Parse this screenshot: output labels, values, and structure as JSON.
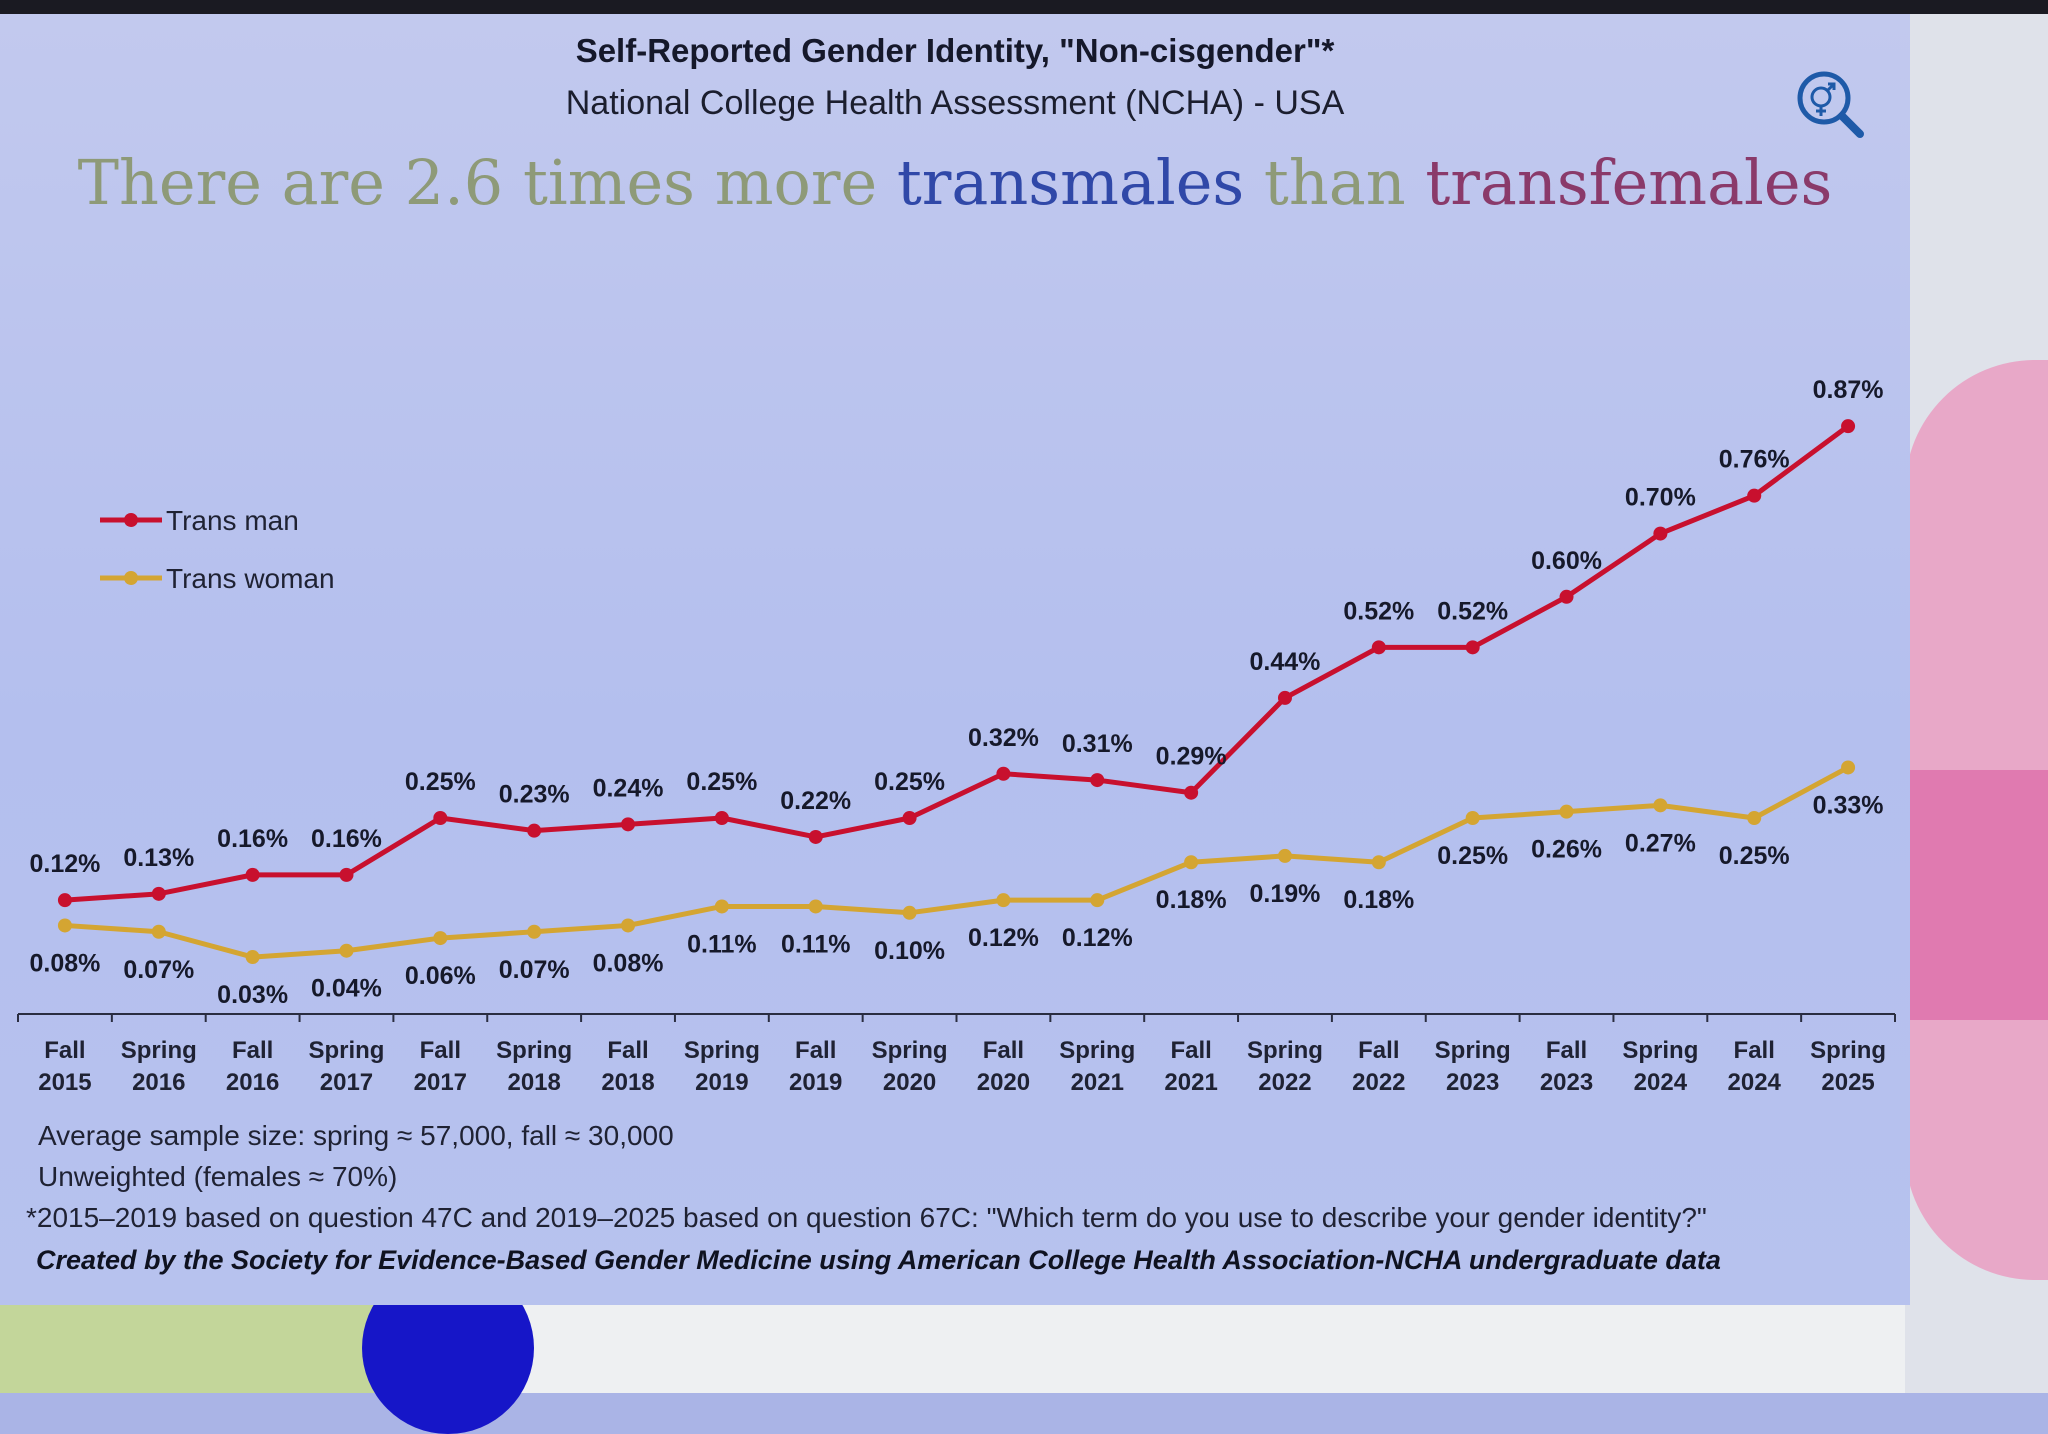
{
  "title": "Self-Reported Gender Identity, \"Non-cisgender\"*",
  "subtitle": "National College Health Assessment (NCHA) - USA",
  "headline": {
    "part1": "There are 2.6 times more ",
    "part2": "transmales",
    "part3": " than ",
    "part4": "transfemales"
  },
  "logo_icon": "gender-search-icon",
  "notes": {
    "sample_size": "Average sample size: spring ≈ 57,000, fall ≈ 30,000",
    "weighting": "Unweighted (females ≈ 70%)",
    "questions": "*2015–2019 based on question 47C and 2019–2025 based on question 67C: \"Which term do you use to describe your gender identity?\"",
    "credit": "Created by the Society for Evidence-Based Gender Medicine using American College Health Association-NCHA undergraduate data"
  },
  "chart_data": {
    "type": "line",
    "title": "Self-Reported Gender Identity, \"Non-cisgender\"*",
    "xlabel": "",
    "ylabel": "",
    "ylim": [
      0,
      1.0
    ],
    "grid": false,
    "legend_position": "left",
    "categories": [
      [
        "Fall",
        "2015"
      ],
      [
        "Spring",
        "2016"
      ],
      [
        "Fall",
        "2016"
      ],
      [
        "Spring",
        "2017"
      ],
      [
        "Fall",
        "2017"
      ],
      [
        "Spring",
        "2018"
      ],
      [
        "Fall",
        "2018"
      ],
      [
        "Spring",
        "2019"
      ],
      [
        "Fall",
        "2019"
      ],
      [
        "Spring",
        "2020"
      ],
      [
        "Fall",
        "2020"
      ],
      [
        "Spring",
        "2021"
      ],
      [
        "Fall",
        "2021"
      ],
      [
        "Spring",
        "2022"
      ],
      [
        "Fall",
        "2022"
      ],
      [
        "Spring",
        "2023"
      ],
      [
        "Fall",
        "2023"
      ],
      [
        "Spring",
        "2024"
      ],
      [
        "Fall",
        "2024"
      ],
      [
        "Spring",
        "2025"
      ]
    ],
    "series": [
      {
        "name": "Trans man",
        "color": "#c8102e",
        "values": [
          0.12,
          0.13,
          0.16,
          0.16,
          0.25,
          0.23,
          0.24,
          0.25,
          0.22,
          0.25,
          0.32,
          0.31,
          0.29,
          0.44,
          0.52,
          0.52,
          0.6,
          0.7,
          0.76,
          0.87
        ],
        "labels": [
          "0.12%",
          "0.13%",
          "0.16%",
          "0.16%",
          "0.25%",
          "0.23%",
          "0.24%",
          "0.25%",
          "0.22%",
          "0.25%",
          "0.32%",
          "0.31%",
          "0.29%",
          "0.44%",
          "0.52%",
          "0.52%",
          "0.60%",
          "0.70%",
          "0.76%",
          "0.87%"
        ]
      },
      {
        "name": "Trans woman",
        "color": "#d4a532",
        "values": [
          0.08,
          0.07,
          0.03,
          0.04,
          0.06,
          0.07,
          0.08,
          0.11,
          0.11,
          0.1,
          0.12,
          0.12,
          0.18,
          0.19,
          0.18,
          0.25,
          0.26,
          0.27,
          0.25,
          0.33
        ],
        "labels": [
          "0.08%",
          "0.07%",
          "0.03%",
          "0.04%",
          "0.06%",
          "0.07%",
          "0.08%",
          "0.11%",
          "0.11%",
          "0.10%",
          "0.12%",
          "0.12%",
          "0.18%",
          "0.19%",
          "0.18%",
          "0.25%",
          "0.26%",
          "0.27%",
          "0.25%",
          "0.33%"
        ]
      }
    ]
  }
}
